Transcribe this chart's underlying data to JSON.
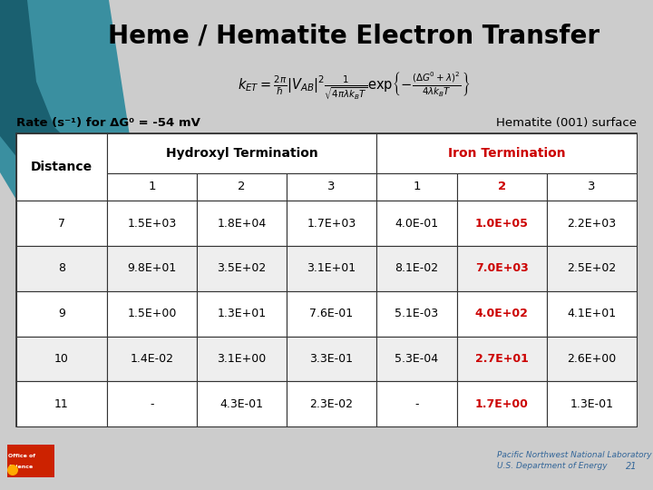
{
  "title": "Heme / Hematite Electron Transfer",
  "subtitle_left": "Rate (s⁻¹) for ΔG⁰ = -54 mV",
  "subtitle_right": "Hematite (001) surface",
  "col_header_left": "Hydroxyl Termination",
  "col_header_right": "Iron Termination",
  "row_header": "Distance",
  "sub_headers": [
    "1",
    "2",
    "3",
    "1",
    "2",
    "3"
  ],
  "distances": [
    "7",
    "8",
    "9",
    "10",
    "11"
  ],
  "table_data": [
    [
      "1.5E+03",
      "1.8E+04",
      "1.7E+03",
      "4.0E-01",
      "1.0E+05",
      "2.2E+03"
    ],
    [
      "9.8E+01",
      "3.5E+02",
      "3.1E+01",
      "8.1E-02",
      "7.0E+03",
      "2.5E+02"
    ],
    [
      "1.5E+00",
      "1.3E+01",
      "7.6E-01",
      "5.1E-03",
      "4.0E+02",
      "4.1E+01"
    ],
    [
      "1.4E-02",
      "3.1E+00",
      "3.3E-01",
      "5.3E-04",
      "2.7E+01",
      "2.6E+00"
    ],
    [
      "-",
      "4.3E-01",
      "2.3E-02",
      "-",
      "1.7E+00",
      "1.3E-01"
    ]
  ],
  "red_col_index": 4,
  "bg_color": "#cccccc",
  "table_bg": "#ffffff",
  "border_color": "#333333",
  "title_color": "#000000",
  "red_color": "#cc0000",
  "black_color": "#000000",
  "teal_dark": "#1a6070",
  "teal_light": "#3a8fa0",
  "footer_color": "#336699",
  "formula_text": "$k_{ET} = \\frac{2\\pi}{\\hbar}|V_{AB}|^2 \\frac{1}{\\sqrt{4\\pi\\lambda k_B T}} \\mathrm{exp}\\left\\{-\\frac{(\\Delta G^0 + \\lambda)^2}{4\\lambda k_B T}\\right\\}$"
}
